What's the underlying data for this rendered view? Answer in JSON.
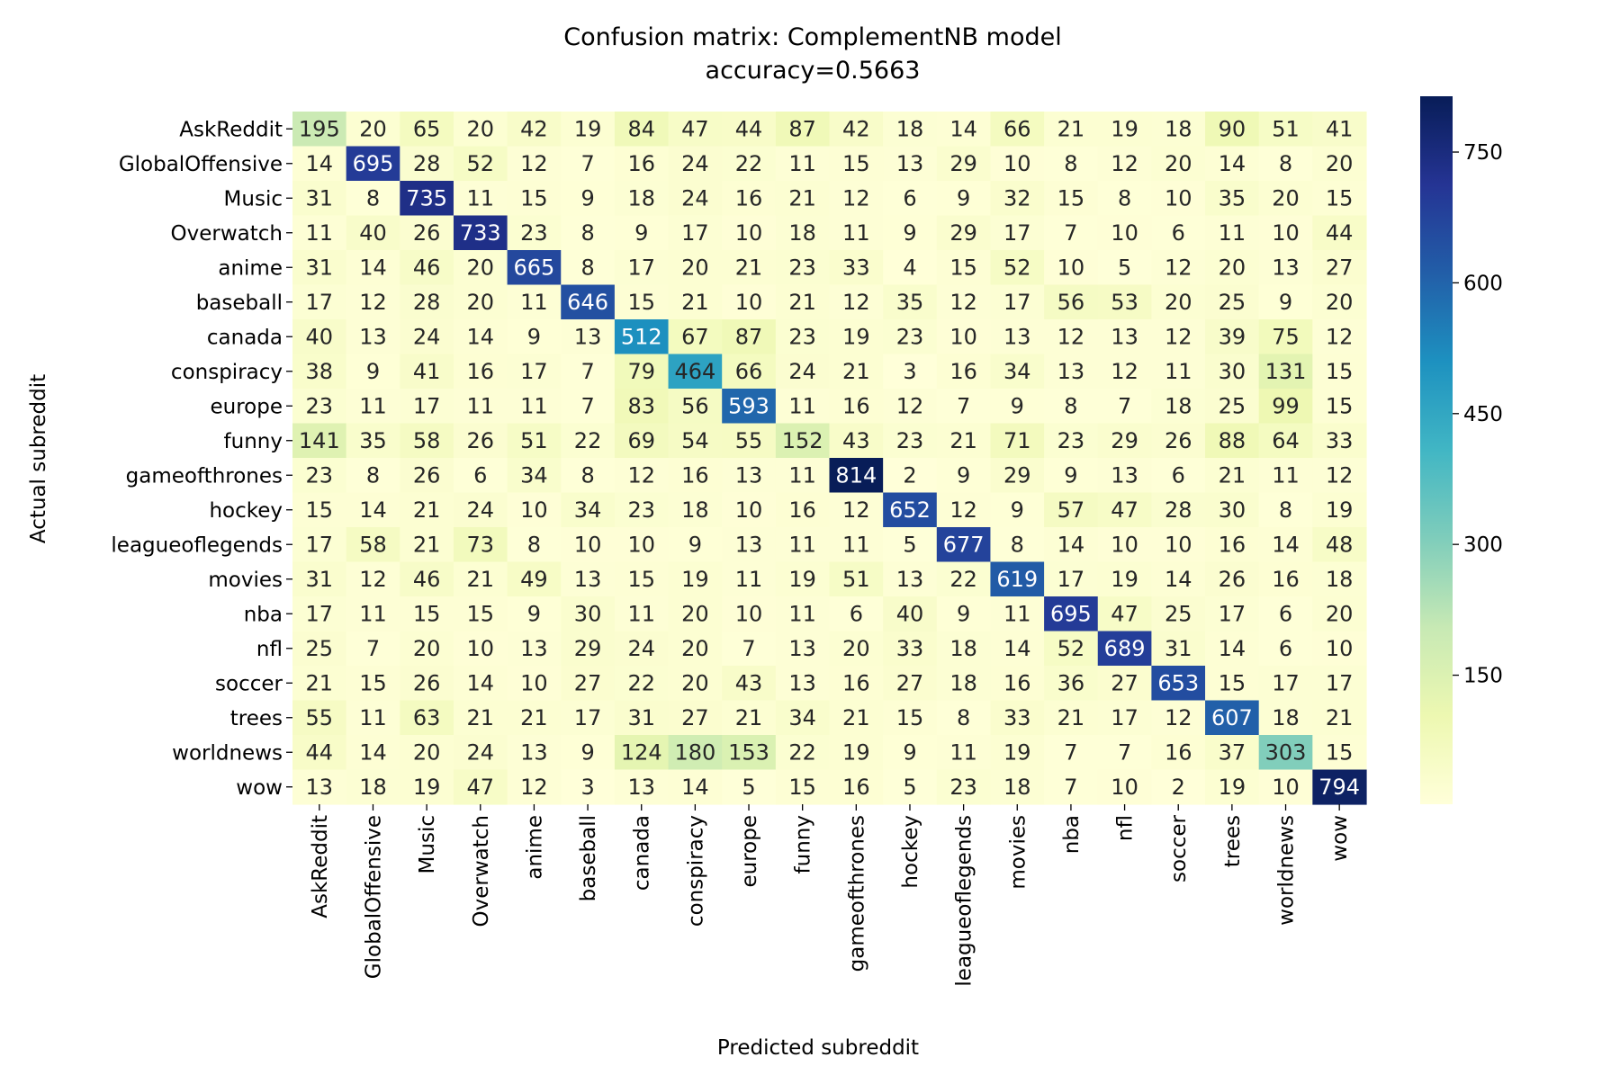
{
  "chart_data": {
    "type": "heatmap",
    "title": "Confusion matrix: ComplementNB model",
    "subtitle": "accuracy=0.5663",
    "xlabel": "Predicted subreddit",
    "ylabel": "Actual subreddit",
    "row_labels": [
      "AskReddit",
      "GlobalOffensive",
      "Music",
      "Overwatch",
      "anime",
      "baseball",
      "canada",
      "conspiracy",
      "europe",
      "funny",
      "gameofthrones",
      "hockey",
      "leagueoflegends",
      "movies",
      "nba",
      "nfl",
      "soccer",
      "trees",
      "worldnews",
      "wow"
    ],
    "col_labels": [
      "AskReddit",
      "GlobalOffensive",
      "Music",
      "Overwatch",
      "anime",
      "baseball",
      "canada",
      "conspiracy",
      "europe",
      "funny",
      "gameofthrones",
      "hockey",
      "leagueoflegends",
      "movies",
      "nba",
      "nfl",
      "soccer",
      "trees",
      "worldnews",
      "wow"
    ],
    "values": [
      [
        195,
        20,
        65,
        20,
        42,
        19,
        84,
        47,
        44,
        87,
        42,
        18,
        14,
        66,
        21,
        19,
        18,
        90,
        51,
        41
      ],
      [
        14,
        695,
        28,
        52,
        12,
        7,
        16,
        24,
        22,
        11,
        15,
        13,
        29,
        10,
        8,
        12,
        20,
        14,
        8,
        20
      ],
      [
        31,
        8,
        735,
        11,
        15,
        9,
        18,
        24,
        16,
        21,
        12,
        6,
        9,
        32,
        15,
        8,
        10,
        35,
        20,
        15
      ],
      [
        11,
        40,
        26,
        733,
        23,
        8,
        9,
        17,
        10,
        18,
        11,
        9,
        29,
        17,
        7,
        10,
        6,
        11,
        10,
        44
      ],
      [
        31,
        14,
        46,
        20,
        665,
        8,
        17,
        20,
        21,
        23,
        33,
        4,
        15,
        52,
        10,
        5,
        12,
        20,
        13,
        27
      ],
      [
        17,
        12,
        28,
        20,
        11,
        646,
        15,
        21,
        10,
        21,
        12,
        35,
        12,
        17,
        56,
        53,
        20,
        25,
        9,
        20
      ],
      [
        40,
        13,
        24,
        14,
        9,
        13,
        512,
        67,
        87,
        23,
        19,
        23,
        10,
        13,
        12,
        13,
        12,
        39,
        75,
        12
      ],
      [
        38,
        9,
        41,
        16,
        17,
        7,
        79,
        464,
        66,
        24,
        21,
        3,
        16,
        34,
        13,
        12,
        11,
        30,
        131,
        15
      ],
      [
        23,
        11,
        17,
        11,
        11,
        7,
        83,
        56,
        593,
        11,
        16,
        12,
        7,
        9,
        8,
        7,
        18,
        25,
        99,
        15
      ],
      [
        141,
        35,
        58,
        26,
        51,
        22,
        69,
        54,
        55,
        152,
        43,
        23,
        21,
        71,
        23,
        29,
        26,
        88,
        64,
        33
      ],
      [
        23,
        8,
        26,
        6,
        34,
        8,
        12,
        16,
        13,
        11,
        814,
        2,
        9,
        29,
        9,
        13,
        6,
        21,
        11,
        12
      ],
      [
        15,
        14,
        21,
        24,
        10,
        34,
        23,
        18,
        10,
        16,
        12,
        652,
        12,
        9,
        57,
        47,
        28,
        30,
        8,
        19
      ],
      [
        17,
        58,
        21,
        73,
        8,
        10,
        10,
        9,
        13,
        11,
        11,
        5,
        677,
        8,
        14,
        10,
        10,
        16,
        14,
        48
      ],
      [
        31,
        12,
        46,
        21,
        49,
        13,
        15,
        19,
        11,
        19,
        51,
        13,
        22,
        619,
        17,
        19,
        14,
        26,
        16,
        18
      ],
      [
        17,
        11,
        15,
        15,
        9,
        30,
        11,
        20,
        10,
        11,
        6,
        40,
        9,
        11,
        695,
        47,
        25,
        17,
        6,
        20
      ],
      [
        25,
        7,
        20,
        10,
        13,
        29,
        24,
        20,
        7,
        13,
        20,
        33,
        18,
        14,
        52,
        689,
        31,
        14,
        6,
        10
      ],
      [
        21,
        15,
        26,
        14,
        10,
        27,
        22,
        20,
        43,
        13,
        16,
        27,
        18,
        16,
        36,
        27,
        653,
        15,
        17,
        17
      ],
      [
        55,
        11,
        63,
        21,
        21,
        17,
        31,
        27,
        21,
        34,
        21,
        15,
        8,
        33,
        21,
        17,
        12,
        607,
        18,
        21
      ],
      [
        44,
        14,
        20,
        24,
        13,
        9,
        124,
        180,
        153,
        22,
        19,
        9,
        11,
        19,
        7,
        7,
        16,
        37,
        303,
        15
      ],
      [
        13,
        18,
        19,
        47,
        12,
        3,
        13,
        14,
        5,
        15,
        16,
        5,
        23,
        18,
        7,
        10,
        2,
        19,
        10,
        794
      ]
    ],
    "vmin": 2,
    "vmax": 814,
    "colormap": "YlGnBu",
    "colorbar_ticks": [
      150,
      300,
      450,
      600,
      750
    ],
    "grid": false,
    "legend": "colorbar-right"
  }
}
